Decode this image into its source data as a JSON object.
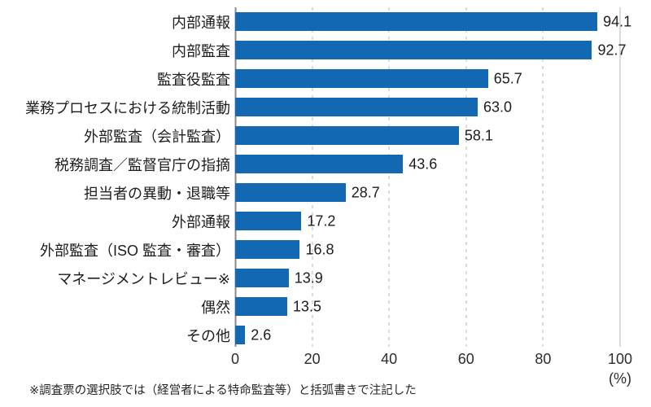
{
  "chart_data": {
    "type": "bar",
    "orientation": "horizontal",
    "categories": [
      "内部通報",
      "内部監査",
      "監査役監査",
      "業務プロセスにおける統制活動",
      "外部監査（会計監査）",
      "税務調査／監督官庁の指摘",
      "担当者の異動・退職等",
      "外部通報",
      "外部監査（ISO 監査・審査）",
      "マネージメントレビュー※",
      "偶然",
      "その他"
    ],
    "values": [
      94.1,
      92.7,
      65.7,
      63.0,
      58.1,
      43.6,
      28.7,
      17.2,
      16.8,
      13.9,
      13.5,
      2.6
    ],
    "value_labels": [
      "94.1",
      "92.7",
      "65.7",
      "63.0",
      "58.1",
      "43.6",
      "28.7",
      "17.2",
      "16.8",
      "13.9",
      "13.5",
      "2.6"
    ],
    "title": "",
    "xlabel": "",
    "ylabel": "",
    "xlim": [
      0,
      100
    ],
    "x_ticks": [
      0,
      20,
      40,
      60,
      80,
      100
    ],
    "x_tick_labels": [
      "0",
      "20",
      "40",
      "60",
      "80",
      "100"
    ],
    "axis_unit": "(%)",
    "bar_color": "#1268b3",
    "grid": "vertical; dashed at 20/40/60/80; solid at 0 and 100",
    "legend": "none"
  },
  "footnote": "※調査票の選択肢では（経営者による特命監査等）と括弧書きで注記した"
}
